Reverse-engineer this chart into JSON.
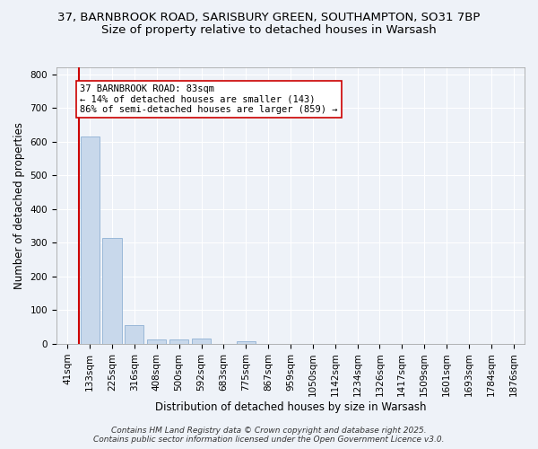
{
  "title_line1": "37, BARNBROOK ROAD, SARISBURY GREEN, SOUTHAMPTON, SO31 7BP",
  "title_line2": "Size of property relative to detached houses in Warsash",
  "xlabel": "Distribution of detached houses by size in Warsash",
  "ylabel": "Number of detached properties",
  "categories": [
    "41sqm",
    "133sqm",
    "225sqm",
    "316sqm",
    "408sqm",
    "500sqm",
    "592sqm",
    "683sqm",
    "775sqm",
    "867sqm",
    "959sqm",
    "1050sqm",
    "1142sqm",
    "1234sqm",
    "1326sqm",
    "1417sqm",
    "1509sqm",
    "1601sqm",
    "1693sqm",
    "1784sqm",
    "1876sqm"
  ],
  "values": [
    0,
    615,
    315,
    55,
    12,
    13,
    15,
    0,
    8,
    0,
    0,
    0,
    0,
    0,
    0,
    0,
    0,
    0,
    0,
    0,
    0
  ],
  "bar_color": "#c8d8eb",
  "bar_edge_color": "#9ab8d8",
  "marker_color": "#cc0000",
  "ylim": [
    0,
    820
  ],
  "yticks": [
    0,
    100,
    200,
    300,
    400,
    500,
    600,
    700,
    800
  ],
  "annotation_line1": "37 BARNBROOK ROAD: 83sqm",
  "annotation_line2": "← 14% of detached houses are smaller (143)",
  "annotation_line3": "86% of semi-detached houses are larger (859) →",
  "footer_line1": "Contains HM Land Registry data © Crown copyright and database right 2025.",
  "footer_line2": "Contains public sector information licensed under the Open Government Licence v3.0.",
  "bg_color": "#eef2f8",
  "plot_bg_color": "#eef2f8",
  "grid_color": "#ffffff",
  "title1_fontsize": 9.5,
  "title2_fontsize": 9.5,
  "axis_label_fontsize": 8.5,
  "tick_fontsize": 7.5,
  "annotation_fontsize": 7.5,
  "footer_fontsize": 6.5
}
